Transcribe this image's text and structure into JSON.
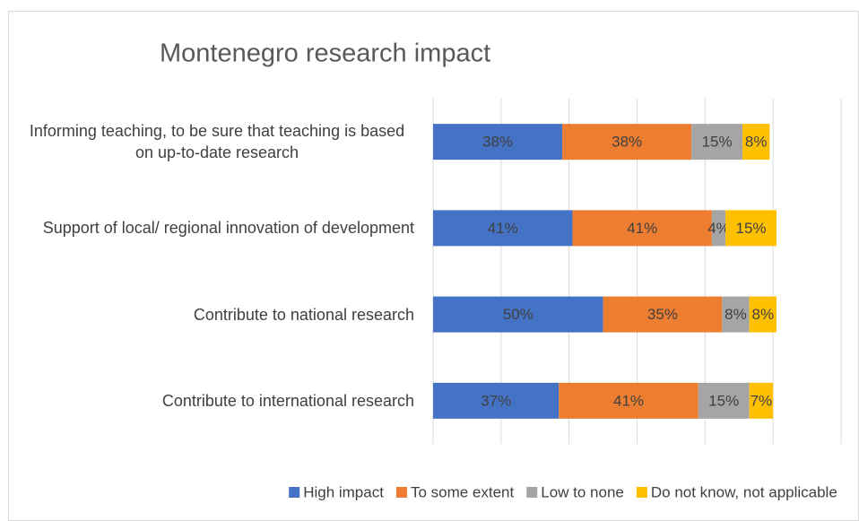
{
  "chart_data": {
    "type": "stacked_bar_horizontal",
    "title": "Montenegro research impact",
    "categories": [
      "Informing teaching, to be sure that teaching is based on up-to-date research",
      "Support of local/ regional innovation of development",
      "Contribute to national research",
      "Contribute to international research"
    ],
    "series": [
      {
        "name": "High impact",
        "color": "#4472c4",
        "values": [
          38,
          41,
          50,
          37
        ],
        "value_labels": [
          "38%",
          "41%",
          "50%",
          "37%"
        ]
      },
      {
        "name": "To some extent",
        "color": "#ed7d31",
        "values": [
          38,
          41,
          35,
          41
        ],
        "value_labels": [
          "38%",
          "41%",
          "35%",
          "41%"
        ]
      },
      {
        "name": "Low to none",
        "color": "#a5a5a5",
        "values": [
          15,
          4,
          8,
          15
        ],
        "value_labels": [
          "15%",
          "4%",
          "8%",
          "15%"
        ]
      },
      {
        "name": "Do not know, not applicable",
        "color": "#ffc000",
        "values": [
          8,
          15,
          8,
          7
        ],
        "value_labels": [
          "8%",
          "15%",
          "8%",
          "7%"
        ]
      }
    ],
    "xlim": [
      0,
      120
    ],
    "xticks": [
      0,
      20,
      40,
      60,
      80,
      100,
      120
    ],
    "grid": true,
    "legend": "bottom"
  }
}
